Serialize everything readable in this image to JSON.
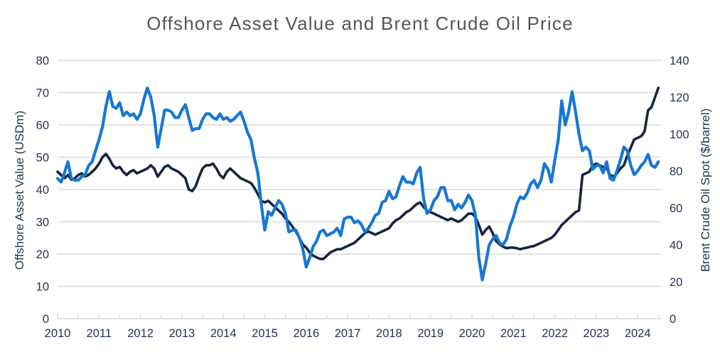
{
  "title": "Offshore Asset Value and Brent Crude Oil Price",
  "chart_data": {
    "type": "line",
    "title": "Offshore Asset Value and Brent Crude Oil Price",
    "x_interval": "monthly",
    "x_start": "2010-01",
    "x_end": "2024-07",
    "x_tick_labels": [
      "2010",
      "2011",
      "2012",
      "2013",
      "2014",
      "2015",
      "2016",
      "2017",
      "2018",
      "2019",
      "2020",
      "2021",
      "2022",
      "2023",
      "2024"
    ],
    "grid": "horizontal-only",
    "legend_position": "none",
    "left_axis": {
      "label": "Offshore Asset Value (USDm)",
      "range": [
        0,
        80
      ],
      "tick_values": [
        0,
        10,
        20,
        30,
        40,
        50,
        60,
        70,
        80
      ]
    },
    "right_axis": {
      "label": "Brent Crude Oil Spot ($/barrel)",
      "range": [
        0,
        140
      ],
      "tick_values": [
        0,
        20,
        40,
        60,
        80,
        100,
        120,
        140
      ]
    },
    "colors": {
      "asset_value_line": "#16243e",
      "brent_line": "#1777d3",
      "gridline": "#d9d9d9",
      "tick_text": "#223456",
      "title_text": "#54565a"
    },
    "series": [
      {
        "name": "Offshore Asset Value (USDm)",
        "axis": "left",
        "color_key": "asset_value_line",
        "values": [
          45.5,
          44.5,
          43.5,
          44.5,
          43.0,
          43.5,
          44.5,
          45.0,
          44.0,
          44.5,
          45.5,
          46.5,
          48.0,
          50.0,
          51.0,
          49.5,
          47.5,
          46.5,
          47.0,
          45.5,
          44.5,
          45.5,
          46.0,
          45.0,
          45.5,
          46.0,
          46.5,
          47.5,
          46.5,
          44.0,
          45.5,
          47.0,
          47.5,
          46.5,
          46.0,
          45.5,
          44.5,
          43.5,
          40.0,
          39.5,
          41.0,
          44.0,
          46.5,
          47.5,
          47.5,
          48.0,
          46.5,
          44.5,
          43.5,
          45.5,
          46.5,
          45.5,
          44.5,
          43.5,
          43.0,
          42.5,
          42.0,
          40.5,
          38.5,
          36.5,
          36.0,
          36.5,
          35.5,
          34.5,
          33.5,
          32.5,
          31.0,
          30.0,
          28.5,
          27.0,
          25.0,
          23.0,
          22.0,
          20.5,
          19.5,
          19.0,
          18.5,
          18.5,
          19.5,
          20.5,
          21.0,
          21.5,
          21.5,
          22.0,
          22.5,
          23.0,
          23.5,
          24.5,
          25.5,
          26.5,
          27.0,
          26.5,
          26.0,
          26.5,
          27.0,
          27.5,
          28.0,
          29.5,
          30.5,
          31.0,
          32.0,
          33.0,
          33.5,
          34.5,
          35.5,
          36.0,
          34.5,
          33.5,
          33.0,
          32.5,
          32.0,
          31.5,
          31.0,
          30.5,
          31.0,
          30.5,
          30.0,
          30.5,
          31.5,
          32.5,
          32.5,
          31.5,
          29.0,
          26.0,
          27.5,
          28.5,
          26.5,
          24.0,
          23.0,
          22.3,
          21.8,
          22.0,
          22.0,
          21.8,
          21.5,
          21.8,
          22.0,
          22.3,
          22.5,
          23.0,
          23.5,
          24.0,
          24.5,
          25.0,
          26.0,
          27.5,
          29.0,
          30.0,
          31.0,
          32.0,
          33.0,
          33.5,
          44.5,
          45.0,
          45.5,
          47.5,
          48.0,
          47.5,
          47.0,
          46.5,
          44.5,
          44.0,
          45.0,
          46.5,
          47.5,
          50.5,
          53.0,
          55.5,
          56.0,
          56.5,
          58.0,
          64.5,
          65.5,
          68.5,
          71.5
        ]
      },
      {
        "name": "Brent Crude Oil Spot ($/barrel)",
        "axis": "right",
        "color_key": "brent_line",
        "values": [
          76,
          74,
          79,
          85,
          76,
          75,
          75,
          77,
          78,
          83,
          85,
          91,
          97,
          104,
          115,
          123,
          115,
          114,
          117,
          110,
          112,
          110,
          111,
          108,
          111,
          119,
          125,
          120,
          110,
          93,
          103,
          113,
          113,
          112,
          109,
          109,
          113,
          116,
          109,
          102,
          103,
          103,
          108,
          111,
          111,
          109,
          108,
          111,
          108,
          109,
          107,
          108,
          110,
          112,
          107,
          101,
          97,
          87,
          79,
          62,
          48,
          58,
          56,
          60,
          64,
          62,
          57,
          47,
          48,
          48,
          44,
          38,
          28,
          33,
          39,
          42,
          47,
          48,
          45,
          46,
          47,
          49,
          45,
          54,
          55,
          55,
          52,
          53,
          51,
          47,
          49,
          52,
          56,
          57,
          63,
          64,
          69,
          65,
          66,
          72,
          77,
          74,
          74,
          73,
          79,
          82,
          65,
          57,
          59,
          64,
          66,
          71,
          71,
          64,
          64,
          59,
          62,
          60,
          63,
          67,
          64,
          56,
          33,
          21,
          30,
          40,
          43,
          45,
          41,
          40,
          43,
          50,
          55,
          62,
          66,
          65,
          68,
          73,
          75,
          71,
          75,
          84,
          81,
          74,
          86,
          97,
          118,
          105,
          112,
          123,
          112,
          100,
          91,
          93,
          91,
          81,
          83,
          83,
          79,
          85,
          76,
          75,
          80,
          86,
          93,
          91,
          83,
          78,
          80,
          83,
          85,
          89,
          83,
          82,
          85
        ]
      }
    ]
  }
}
